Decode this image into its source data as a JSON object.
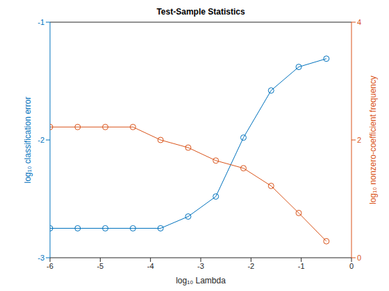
{
  "chart_data": {
    "type": "line",
    "title": "Test-Sample Statistics",
    "x_label": "log₁₀ Lambda",
    "x": [
      -6,
      -5.45,
      -4.9,
      -4.35,
      -3.8,
      -3.25,
      -2.7,
      -2.15,
      -1.6,
      -1.05,
      -0.5
    ],
    "xlim": [
      -6,
      0
    ],
    "xticks": [
      -6,
      -5,
      -4,
      -3,
      -2,
      -1,
      0
    ],
    "ylim": [
      -3,
      -1
    ],
    "yticks": [
      -3,
      -2,
      -1
    ],
    "y2lim": [
      0,
      4
    ],
    "y2ticks": [
      0,
      2,
      4
    ],
    "grid": false,
    "series": [
      {
        "name": "log₁₀ classification error",
        "color": "#0072bd",
        "marker": "circle",
        "line_style": "solid",
        "values": [
          -2.75,
          -2.75,
          -2.75,
          -2.75,
          -2.75,
          -2.65,
          -2.48,
          -1.98,
          -1.58,
          -1.38,
          -1.31
        ]
      },
      {
        "name": "log₁₀ nonzero-coefficient frequency",
        "color": "#d95319",
        "axis": "y2",
        "marker": "circle",
        "line_style": "solid",
        "values": [
          2.22,
          2.22,
          2.22,
          2.22,
          2.0,
          1.87,
          1.65,
          1.52,
          1.22,
          0.76,
          0.28
        ]
      }
    ]
  }
}
